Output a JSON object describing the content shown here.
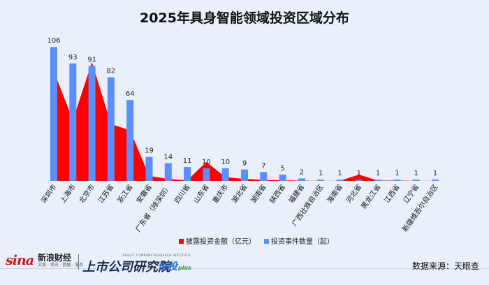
{
  "chart_data": {
    "type": "bar",
    "title": "2025年具身智能领域投资区域分布",
    "categories": [
      "深圳市",
      "上海市",
      "北京市",
      "江苏省",
      "浙江省",
      "安徽省",
      "广东省（除深圳）",
      "四川省",
      "山东省",
      "重庆市",
      "湖北省",
      "湖南省",
      "陕西省",
      "福建省",
      "广西壮族自治区",
      "海南省",
      "河北省",
      "黑龙江省",
      "江西省",
      "辽宁省",
      "新疆维吾尔自治区"
    ],
    "series": [
      {
        "name": "投资事件数量（起）",
        "type": "bar",
        "color": "#5b8ff9",
        "values": [
          106,
          93,
          91,
          82,
          64,
          19,
          14,
          11,
          10,
          10,
          9,
          7,
          5,
          2,
          1,
          1,
          1,
          1,
          1,
          1,
          1
        ],
        "labels_shown": true
      },
      {
        "name": "披露投资金额（亿元）",
        "type": "area",
        "color": "#ff0000",
        "values": [
          87,
          48,
          94,
          45,
          40,
          4,
          1.5,
          0.5,
          15,
          3,
          1.5,
          0.8,
          0.5,
          0.2,
          0.1,
          0.1,
          5,
          0.3,
          0.3,
          0.1,
          0.1
        ]
      }
    ],
    "ylim": [
      0,
      110
    ],
    "grid": false,
    "legend": "bottom"
  },
  "footer": {
    "sina_logo": "sina",
    "sina_name": "新浪财经",
    "sina_sub": "文娱 · 资讯 · 数据 · 服务",
    "inst_en": "PUBLIC COMPANY RESEARCH INSTITUTE",
    "inst_cn": "上市公司研究院",
    "inst_brand": "创投",
    "inst_plus": "plus",
    "source": "数据来源：天眼查"
  }
}
